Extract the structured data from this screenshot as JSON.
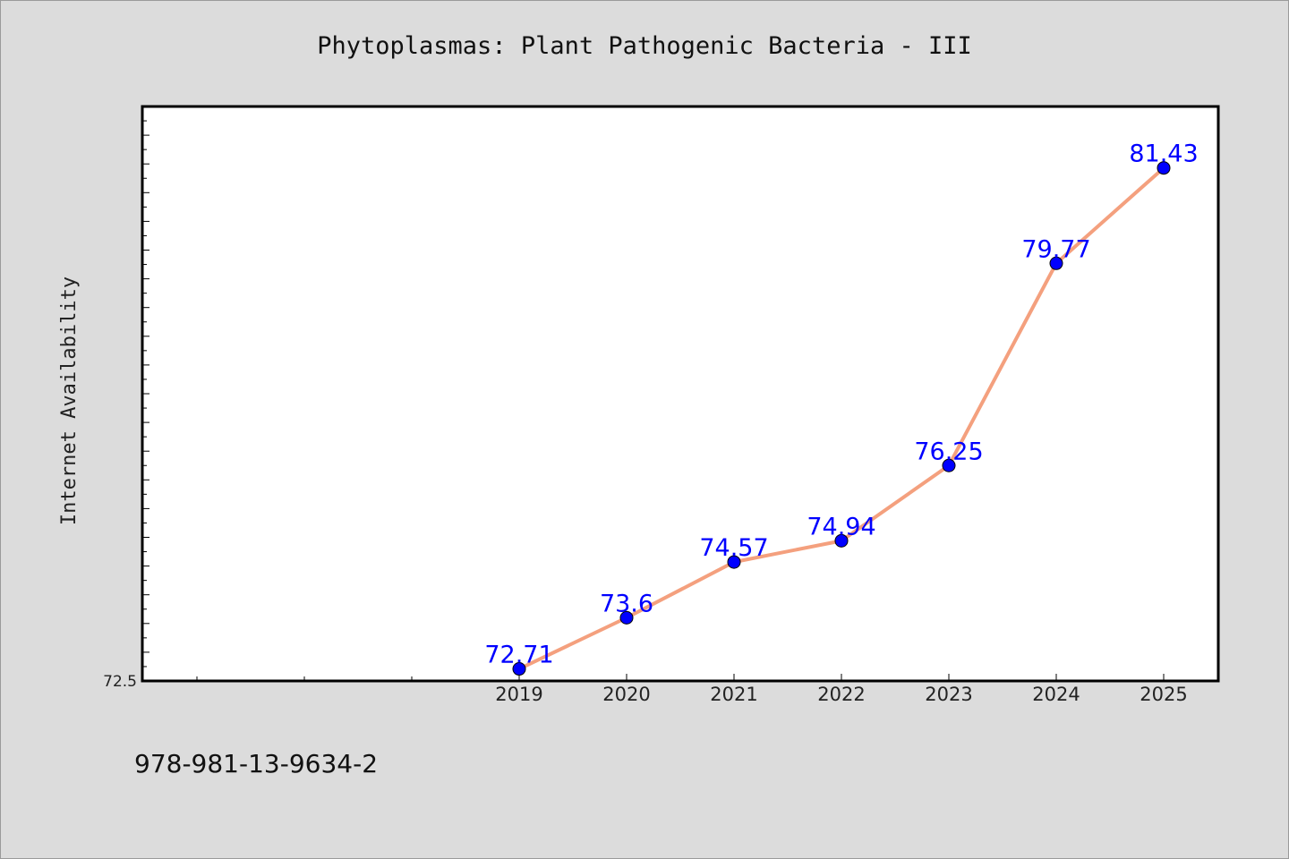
{
  "chart_data": {
    "type": "line",
    "title": "Phytoplasmas: Plant Pathogenic Bacteria - III",
    "ylabel": "Internet Availability",
    "xlabel": "",
    "categories": [
      "2019",
      "2020",
      "2021",
      "2022",
      "2023",
      "2024",
      "2025"
    ],
    "values": [
      72.71,
      73.6,
      74.57,
      74.94,
      76.25,
      79.77,
      81.43
    ],
    "data_labels": [
      "72.71",
      "73.6",
      "74.57",
      "74.94",
      "76.25",
      "79.77",
      "81.43"
    ],
    "y_tick_labels": [
      "72.5"
    ],
    "ylim": [
      72.5,
      82.5
    ],
    "grid": false,
    "line_color": "#f4a07e",
    "marker_color": "#0000ff",
    "label_color": "#0000ff"
  },
  "footer": {
    "isbn": "978-981-13-9634-2"
  }
}
